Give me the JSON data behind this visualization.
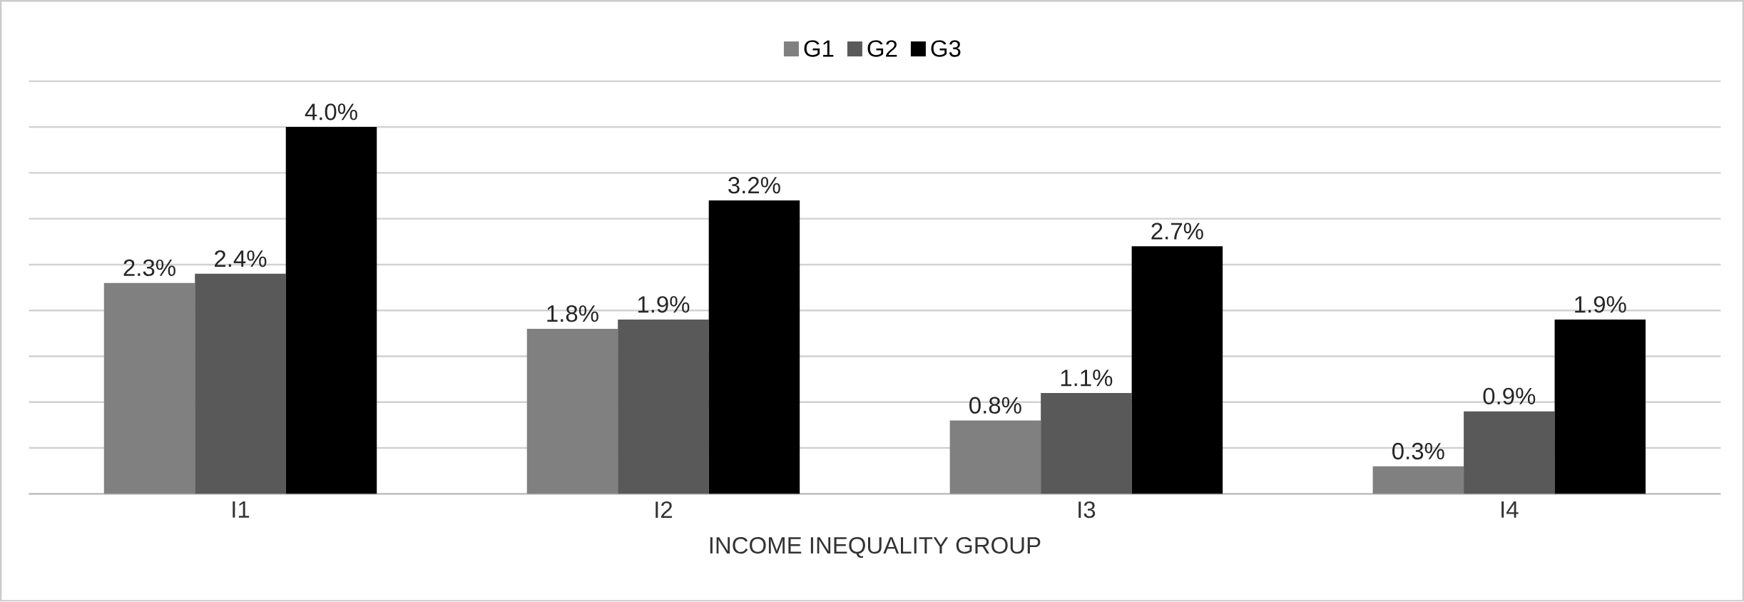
{
  "chart_data": {
    "type": "bar",
    "xlabel": "INCOME INEQUALITY GROUP",
    "categories": [
      "I1",
      "I2",
      "I3",
      "I4"
    ],
    "series": [
      {
        "name": "G1",
        "color": "#808080",
        "values": [
          2.3,
          1.8,
          0.8,
          0.3
        ],
        "value_labels": [
          "2.3%",
          "1.8%",
          "0.8%",
          "0.3%"
        ]
      },
      {
        "name": "G2",
        "color": "#595959",
        "values": [
          2.4,
          1.9,
          1.1,
          0.9
        ],
        "value_labels": [
          "2.4%",
          "1.9%",
          "1.1%",
          "0.9%"
        ]
      },
      {
        "name": "G3",
        "color": "#000000",
        "values": [
          4.0,
          3.2,
          2.7,
          1.9
        ],
        "value_labels": [
          "4.0%",
          "3.2%",
          "2.7%",
          "1.9%"
        ]
      }
    ],
    "ylim": [
      0,
      4.5
    ],
    "yticks": [
      {
        "value": 0,
        "label": null
      },
      {
        "value": 0.5,
        "label": null
      },
      {
        "value": 1,
        "label": null
      },
      {
        "value": 1.5,
        "label": null
      },
      {
        "value": 2,
        "label": null
      },
      {
        "value": 2.5,
        "label": null
      },
      {
        "value": 3,
        "label": null
      },
      {
        "value": 3.5,
        "label": null
      },
      {
        "value": 4,
        "label": null
      },
      {
        "value": 4.5,
        "label": null
      }
    ],
    "tick_labels": "x",
    "grid": "y",
    "legend": "top"
  }
}
